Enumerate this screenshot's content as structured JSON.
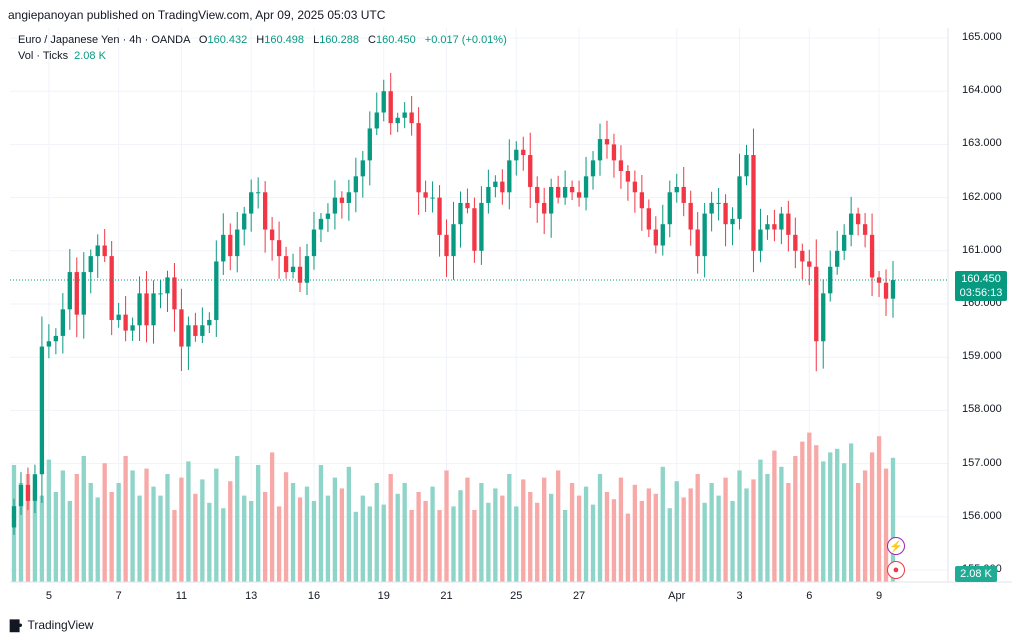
{
  "publish_text": "angiepanoyan published on TradingView.com, Apr 09, 2025 05:03 UTC",
  "legend": {
    "symbol": "Euro / Japanese Yen · 4h · OANDA",
    "o_label": "O",
    "o": "160.432",
    "h_label": "H",
    "h": "160.498",
    "l_label": "L",
    "l": "160.288",
    "c_label": "C",
    "c": "160.450",
    "change": "+0.017 (+0.01%)"
  },
  "volume_legend": {
    "label": "Vol · Ticks",
    "value": "2.08 K"
  },
  "price_tag": {
    "price": "160.450",
    "countdown": "03:56:13"
  },
  "volume_tag": "2.08 K",
  "colors": {
    "up": "#089981",
    "down": "#f23645",
    "vol_up": "#8fd4c9",
    "vol_down": "#f7a9a7"
  },
  "footer_brand": "TradingView",
  "icons": [
    "lightning-icon",
    "record-icon",
    "tradingview-logo-icon"
  ],
  "chart_data": {
    "type": "candlestick",
    "instrument": "EURJPY",
    "timeframe": "4h",
    "y_ticks": [
      "165.000",
      "164.000",
      "163.000",
      "162.000",
      "161.000",
      "160.000",
      "159.000",
      "158.000",
      "157.000",
      "156.000",
      "155.000"
    ],
    "ylim": [
      154.6,
      165.4
    ],
    "x_ticks": [
      {
        "label": "5",
        "index": 5
      },
      {
        "label": "7",
        "index": 15
      },
      {
        "label": "11",
        "index": 24
      },
      {
        "label": "13",
        "index": 34
      },
      {
        "label": "16",
        "index": 43
      },
      {
        "label": "19",
        "index": 53
      },
      {
        "label": "21",
        "index": 62
      },
      {
        "label": "25",
        "index": 72
      },
      {
        "label": "27",
        "index": 81
      },
      {
        "label": "Apr",
        "index": 95
      },
      {
        "label": "3",
        "index": 104
      },
      {
        "label": "6",
        "index": 114
      },
      {
        "label": "9",
        "index": 124
      }
    ],
    "current_price": 160.45,
    "closes": [
      156.2,
      156.6,
      156.3,
      156.8,
      159.2,
      159.3,
      159.4,
      159.9,
      160.6,
      159.8,
      160.6,
      160.9,
      161.1,
      160.9,
      159.7,
      159.8,
      159.5,
      159.6,
      160.2,
      159.6,
      160.2,
      160.2,
      160.5,
      159.9,
      159.2,
      159.6,
      159.4,
      159.6,
      159.7,
      160.8,
      161.3,
      160.9,
      161.4,
      161.7,
      162.1,
      162.1,
      161.4,
      161.2,
      160.9,
      160.6,
      160.7,
      160.4,
      160.9,
      161.4,
      161.6,
      161.7,
      162.0,
      161.9,
      162.1,
      162.4,
      162.7,
      163.3,
      163.6,
      164.0,
      163.4,
      163.5,
      163.6,
      163.4,
      162.1,
      162.0,
      162.0,
      161.3,
      160.9,
      161.5,
      161.9,
      161.8,
      161.0,
      161.9,
      162.2,
      162.3,
      162.1,
      162.7,
      162.9,
      162.8,
      162.2,
      161.9,
      161.7,
      162.2,
      162.0,
      162.2,
      162.1,
      162.0,
      162.4,
      162.7,
      163.1,
      163.0,
      162.7,
      162.5,
      162.3,
      162.1,
      161.8,
      161.4,
      161.1,
      161.5,
      162.1,
      162.2,
      161.9,
      161.4,
      160.9,
      161.7,
      161.9,
      161.9,
      161.5,
      161.6,
      162.4,
      162.8,
      161.0,
      161.4,
      161.5,
      161.4,
      161.7,
      161.3,
      161.0,
      160.8,
      160.7,
      159.3,
      160.2,
      160.7,
      161.0,
      161.3,
      161.7,
      161.5,
      161.3,
      160.5,
      160.4,
      160.1,
      160.45
    ],
    "volumes": [
      65,
      55,
      60,
      52,
      48,
      68,
      50,
      62,
      45,
      60,
      70,
      55,
      47,
      66,
      50,
      55,
      70,
      62,
      48,
      63,
      53,
      48,
      60,
      40,
      58,
      67,
      49,
      57,
      44,
      63,
      41,
      56,
      70,
      48,
      45,
      65,
      50,
      72,
      42,
      61,
      55,
      47,
      53,
      45,
      65,
      48,
      58,
      52,
      64,
      39,
      48,
      42,
      55,
      43,
      60,
      49,
      55,
      40,
      50,
      45,
      53,
      40,
      62,
      42,
      51,
      58,
      40,
      55,
      44,
      52,
      48,
      60,
      42,
      57,
      50,
      44,
      58,
      49,
      62,
      40,
      55,
      48,
      53,
      43,
      60,
      50,
      46,
      58,
      38,
      54,
      45,
      52,
      49,
      64,
      41,
      56,
      47,
      52,
      60,
      44,
      55,
      48,
      58,
      45,
      62,
      52,
      57,
      68,
      60,
      73,
      64,
      55,
      70,
      78,
      83,
      76,
      67,
      72,
      74,
      66,
      77,
      55,
      62,
      72,
      81,
      63,
      69,
      51,
      32
    ]
  }
}
